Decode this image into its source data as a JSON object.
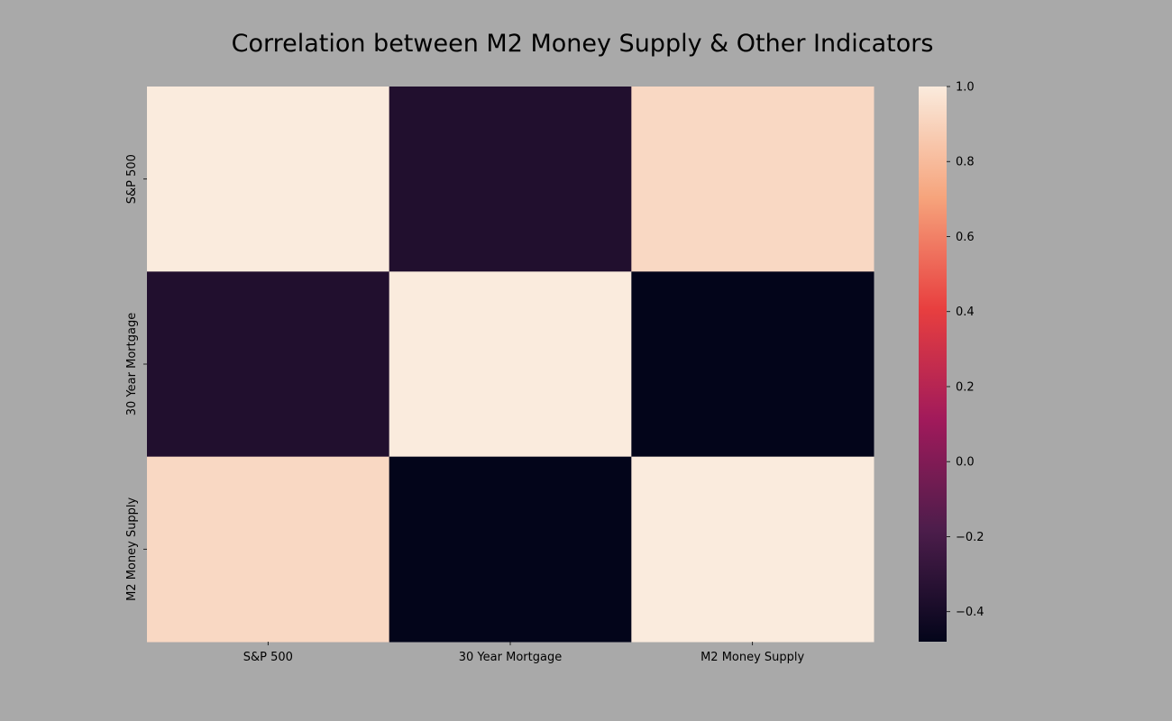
{
  "chart_data": {
    "type": "heatmap",
    "title": "Correlation between M2 Money Supply & Other Indicators",
    "x_categories": [
      "S&P 500",
      "30 Year Mortgage",
      "M2 Money Supply"
    ],
    "y_categories": [
      "S&P 500",
      "30 Year Mortgage",
      "M2 Money Supply"
    ],
    "values": [
      [
        1.0,
        -0.36,
        0.92
      ],
      [
        -0.36,
        1.0,
        -0.48
      ],
      [
        0.92,
        -0.48,
        1.0
      ]
    ],
    "colorbar": {
      "min": -0.48,
      "max": 1.0,
      "ticks": [
        1.0,
        0.8,
        0.6,
        0.4,
        0.2,
        0.0,
        -0.2,
        -0.4
      ],
      "tick_labels": [
        "1.0",
        "0.8",
        "0.6",
        "0.4",
        "0.2",
        "0.0",
        "−0.2",
        "−0.4"
      ],
      "colormap": "rocket",
      "stops": [
        "#03051a",
        "#4c1d4b",
        "#a11a5b",
        "#e83f3f",
        "#f6a47c",
        "#faebdd"
      ]
    },
    "background_color": "#a9a9a9",
    "grid": false,
    "legend": "colorbar-right"
  }
}
